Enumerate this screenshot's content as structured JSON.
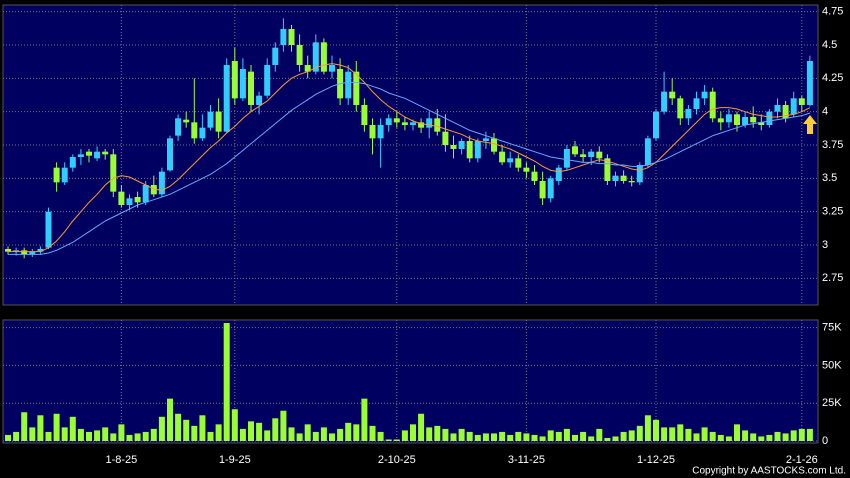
{
  "chart_data": [
    {
      "type": "candlestick",
      "categories": [
        null,
        null,
        null,
        null,
        null,
        null,
        null,
        null,
        null,
        null,
        null,
        null,
        null,
        null,
        "1-8-25",
        null,
        null,
        null,
        null,
        null,
        null,
        null,
        null,
        null,
        null,
        null,
        null,
        null,
        "1-9-25",
        null,
        null,
        null,
        null,
        null,
        null,
        null,
        null,
        null,
        null,
        null,
        null,
        null,
        null,
        null,
        null,
        null,
        null,
        null,
        "2-10-25",
        null,
        null,
        null,
        null,
        null,
        null,
        null,
        null,
        null,
        null,
        null,
        null,
        null,
        null,
        null,
        "3-11-25",
        null,
        null,
        null,
        null,
        null,
        null,
        null,
        null,
        null,
        null,
        null,
        null,
        null,
        null,
        null,
        "1-12-25",
        null,
        null,
        null,
        null,
        null,
        null,
        null,
        null,
        null,
        null,
        null,
        null,
        null,
        null,
        null,
        null,
        null,
        "2-1-26",
        null
      ],
      "open": [
        2.97,
        2.95,
        2.96,
        2.93,
        2.95,
        2.98,
        3.58,
        3.47,
        3.58,
        3.66,
        3.7,
        3.65,
        3.7,
        3.68,
        3.4,
        3.3,
        3.36,
        3.32,
        3.45,
        3.38,
        3.56,
        3.82,
        3.94,
        3.92,
        3.8,
        3.88,
        4.0,
        3.85,
        4.38,
        4.1,
        4.3,
        4.05,
        4.12,
        4.35,
        4.5,
        4.62,
        4.5,
        4.35,
        4.3,
        4.52,
        4.3,
        4.32,
        4.1,
        4.3,
        4.05,
        3.9,
        3.8,
        3.9,
        3.95,
        3.92,
        3.9,
        3.92,
        3.88,
        3.95,
        3.85,
        3.75,
        3.72,
        3.78,
        3.65,
        3.78,
        3.8,
        3.7,
        3.62,
        3.65,
        3.58,
        3.55,
        3.48,
        3.35,
        3.48,
        3.58,
        3.74,
        3.68,
        3.66,
        3.7,
        3.65,
        3.48,
        3.52,
        3.48,
        3.47,
        3.6,
        3.8,
        4.0,
        4.15,
        4.1,
        3.95,
        4.02,
        4.1,
        4.15,
        3.95,
        3.92,
        3.98,
        3.9,
        3.96,
        3.92,
        3.9,
        4.0,
        4.05,
        3.98,
        4.1,
        4.05
      ],
      "high": [
        2.99,
        2.98,
        2.98,
        2.97,
        2.99,
        3.28,
        3.62,
        3.62,
        3.68,
        3.72,
        3.72,
        3.74,
        3.72,
        3.72,
        3.45,
        3.38,
        3.4,
        3.48,
        3.52,
        3.58,
        3.82,
        3.98,
        4.0,
        4.25,
        3.98,
        4.05,
        4.1,
        4.4,
        4.48,
        4.4,
        4.35,
        4.15,
        4.4,
        4.52,
        4.7,
        4.65,
        4.58,
        4.42,
        4.58,
        4.55,
        4.42,
        4.4,
        4.35,
        4.38,
        4.1,
        3.95,
        3.95,
        3.98,
        4.0,
        3.96,
        3.94,
        3.95,
        4.0,
        4.02,
        3.98,
        3.82,
        3.8,
        3.82,
        3.8,
        3.85,
        3.84,
        3.75,
        3.7,
        3.68,
        3.62,
        3.6,
        3.55,
        3.52,
        3.6,
        3.75,
        3.78,
        3.72,
        3.72,
        3.74,
        3.68,
        3.55,
        3.56,
        3.52,
        3.62,
        3.82,
        4.02,
        4.3,
        4.25,
        4.12,
        4.05,
        4.15,
        4.2,
        4.18,
        4.0,
        4.02,
        4.0,
        4.0,
        4.04,
        3.98,
        4.02,
        4.1,
        4.08,
        4.15,
        4.12,
        4.42
      ],
      "low": [
        2.93,
        2.92,
        2.9,
        2.91,
        2.93,
        2.97,
        3.4,
        3.45,
        3.55,
        3.6,
        3.62,
        3.63,
        3.64,
        3.36,
        3.28,
        3.26,
        3.28,
        3.3,
        3.36,
        3.36,
        3.55,
        3.78,
        3.88,
        3.76,
        3.78,
        3.86,
        3.8,
        3.84,
        4.05,
        4.08,
        4.0,
        3.98,
        4.1,
        4.3,
        4.45,
        4.45,
        4.3,
        4.25,
        4.28,
        4.28,
        4.25,
        4.05,
        4.05,
        4.0,
        3.85,
        3.68,
        3.58,
        3.85,
        3.88,
        3.86,
        3.86,
        3.84,
        3.8,
        3.82,
        3.7,
        3.65,
        3.68,
        3.62,
        3.62,
        3.72,
        3.68,
        3.6,
        3.58,
        3.55,
        3.5,
        3.45,
        3.3,
        3.32,
        3.45,
        3.56,
        3.66,
        3.62,
        3.6,
        3.62,
        3.45,
        3.44,
        3.46,
        3.44,
        3.45,
        3.58,
        3.78,
        3.98,
        4.05,
        3.9,
        3.9,
        3.98,
        4.05,
        3.92,
        3.86,
        3.88,
        3.85,
        3.88,
        3.88,
        3.86,
        3.88,
        3.95,
        3.92,
        3.96,
        4.0,
        4.04
      ],
      "close": [
        2.95,
        2.96,
        2.93,
        2.95,
        2.97,
        3.25,
        3.47,
        3.58,
        3.66,
        3.68,
        3.67,
        3.7,
        3.68,
        3.4,
        3.3,
        3.35,
        3.32,
        3.45,
        3.38,
        3.55,
        3.8,
        3.95,
        3.92,
        3.8,
        3.88,
        4.0,
        3.85,
        4.35,
        4.1,
        4.32,
        4.05,
        4.12,
        4.35,
        4.48,
        4.62,
        4.5,
        4.35,
        4.3,
        4.52,
        4.3,
        4.35,
        4.1,
        4.3,
        4.05,
        3.9,
        3.8,
        3.9,
        3.95,
        3.92,
        3.9,
        3.92,
        3.88,
        3.95,
        3.85,
        3.75,
        3.72,
        3.78,
        3.65,
        3.78,
        3.8,
        3.7,
        3.62,
        3.65,
        3.58,
        3.55,
        3.48,
        3.35,
        3.5,
        3.58,
        3.72,
        3.68,
        3.66,
        3.7,
        3.65,
        3.48,
        3.52,
        3.48,
        3.47,
        3.6,
        3.8,
        4.0,
        4.15,
        4.1,
        3.95,
        4.02,
        4.1,
        4.15,
        3.95,
        3.92,
        3.98,
        3.9,
        3.96,
        3.92,
        3.9,
        4.0,
        4.05,
        3.95,
        4.1,
        4.05,
        4.38
      ],
      "up_color": "#33ccff",
      "down_color": "#99ff33",
      "series": [
        {
          "color": "#ff9933",
          "values": [
            2.95,
            2.95,
            2.95,
            2.95,
            2.95,
            2.98,
            3.03,
            3.1,
            3.18,
            3.25,
            3.32,
            3.38,
            3.45,
            3.5,
            3.52,
            3.51,
            3.48,
            3.45,
            3.42,
            3.41,
            3.44,
            3.49,
            3.55,
            3.61,
            3.67,
            3.73,
            3.78,
            3.84,
            3.89,
            3.95,
            4.0,
            4.04,
            4.08,
            4.14,
            4.2,
            4.25,
            4.28,
            4.3,
            4.33,
            4.35,
            4.36,
            4.35,
            4.33,
            4.28,
            4.22,
            4.15,
            4.09,
            4.04,
            4.0,
            3.96,
            3.93,
            3.91,
            3.9,
            3.89,
            3.87,
            3.85,
            3.83,
            3.8,
            3.78,
            3.77,
            3.76,
            3.74,
            3.72,
            3.69,
            3.66,
            3.63,
            3.59,
            3.56,
            3.55,
            3.56,
            3.58,
            3.6,
            3.62,
            3.64,
            3.63,
            3.61,
            3.59,
            3.57,
            3.56,
            3.58,
            3.62,
            3.68,
            3.74,
            3.8,
            3.86,
            3.92,
            3.98,
            4.02,
            4.03,
            4.03,
            4.02,
            4.0,
            3.98,
            3.97,
            3.96,
            3.96,
            3.97,
            3.98,
            4.0,
            4.03
          ]
        },
        {
          "color": "#66aaff",
          "values": [
            2.93,
            2.93,
            2.93,
            2.93,
            2.93,
            2.94,
            2.96,
            2.99,
            3.02,
            3.06,
            3.1,
            3.14,
            3.18,
            3.21,
            3.24,
            3.27,
            3.3,
            3.32,
            3.34,
            3.36,
            3.38,
            3.41,
            3.44,
            3.47,
            3.5,
            3.53,
            3.57,
            3.61,
            3.66,
            3.71,
            3.76,
            3.81,
            3.86,
            3.91,
            3.96,
            4.01,
            4.05,
            4.09,
            4.13,
            4.16,
            4.19,
            4.21,
            4.22,
            4.22,
            4.21,
            4.19,
            4.17,
            4.14,
            4.12,
            4.1,
            4.07,
            4.04,
            4.01,
            3.98,
            3.95,
            3.92,
            3.89,
            3.86,
            3.84,
            3.82,
            3.8,
            3.78,
            3.76,
            3.74,
            3.72,
            3.7,
            3.68,
            3.66,
            3.65,
            3.64,
            3.63,
            3.62,
            3.62,
            3.61,
            3.61,
            3.6,
            3.6,
            3.59,
            3.59,
            3.6,
            3.62,
            3.64,
            3.67,
            3.7,
            3.73,
            3.76,
            3.79,
            3.82,
            3.84,
            3.86,
            3.88,
            3.9,
            3.91,
            3.92,
            3.93,
            3.94,
            3.95,
            3.96,
            3.97,
            3.99
          ]
        }
      ],
      "ylim": [
        2.55,
        4.8
      ],
      "yticks": [
        2.75,
        3,
        3.25,
        3.5,
        3.75,
        4,
        4.25,
        4.5,
        4.75
      ],
      "grid": true
    },
    {
      "type": "bar",
      "color": "#99ff33",
      "values": [
        4000,
        6000,
        19000,
        9000,
        17000,
        6000,
        18000,
        9000,
        16000,
        8000,
        6000,
        7000,
        9000,
        5000,
        11000,
        4000,
        5000,
        6000,
        8000,
        16000,
        28000,
        18000,
        14000,
        10000,
        17000,
        6000,
        11000,
        78000,
        21000,
        8000,
        13000,
        12000,
        7000,
        15000,
        20000,
        9000,
        5000,
        11000,
        6000,
        9000,
        5000,
        8000,
        12000,
        11000,
        28000,
        10000,
        6000,
        1000,
        1000,
        7000,
        11000,
        18000,
        9000,
        10000,
        8000,
        5000,
        8000,
        6000,
        4000,
        5000,
        5000,
        6000,
        4000,
        6000,
        5000,
        4000,
        3000,
        7000,
        6000,
        8000,
        4000,
        6000,
        3000,
        8000,
        2000,
        3000,
        6000,
        7000,
        10000,
        17000,
        14000,
        9000,
        9000,
        11000,
        8000,
        5000,
        9000,
        6000,
        4000,
        3000,
        11000,
        7000,
        5000,
        3000,
        4000,
        6000,
        5000,
        7000,
        8000,
        8000
      ],
      "ylim": [
        0,
        80000
      ],
      "yticks": [
        0,
        {
          "value": 25000,
          "label": "25K"
        },
        {
          "value": 50000,
          "label": "50K"
        },
        {
          "value": 75000,
          "label": "75K"
        }
      ],
      "grid": true
    }
  ],
  "copyright": "Copyright by AASTOCKS.com Ltd."
}
